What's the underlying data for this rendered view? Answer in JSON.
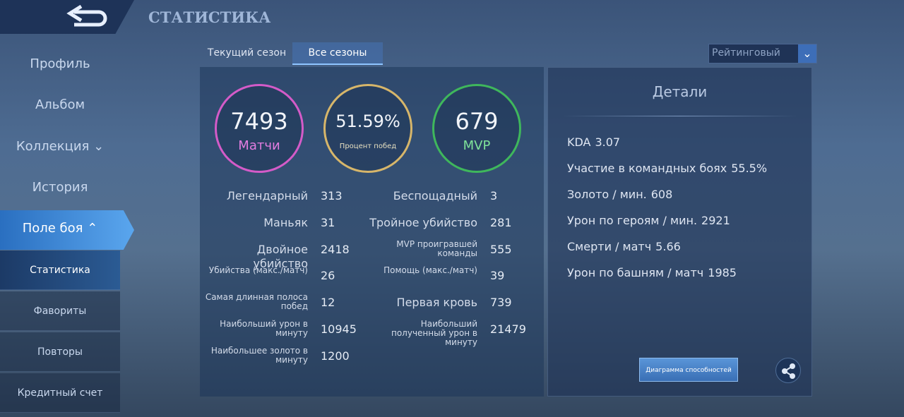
{
  "header": {
    "title": "СТАТИСТИКА"
  },
  "sidebar": {
    "items": [
      "Профиль",
      "Альбом",
      "Коллекция",
      "История",
      "Поле боя"
    ],
    "subitems": [
      "Статистика",
      "Фавориты",
      "Повторы",
      "Кредитный счет"
    ]
  },
  "tabs": [
    "Текущий сезон",
    "Все сезоны"
  ],
  "mode_select": "Рейтинговый",
  "summary": [
    {
      "value": 7493,
      "label": "Матчи"
    },
    {
      "value": "51.59%",
      "label": "Процент побед"
    },
    {
      "value": 679,
      "label": "MVP"
    }
  ],
  "stats_left": [
    {
      "label": "Легендарный",
      "value": 313
    },
    {
      "label": "Маньяк",
      "value": 31
    },
    {
      "label": "Двойное убийство",
      "value": 2418
    },
    {
      "label": "Убийства (макс./матч)",
      "value": 26
    },
    {
      "label": "Самая длинная полоса побед",
      "value": 12
    },
    {
      "label": "Наибольший урон в минуту",
      "value": 10945
    },
    {
      "label": "Наибольшее золото в минуту",
      "value": 1200
    }
  ],
  "stats_right": [
    {
      "label": "Беспощадный",
      "value": 3
    },
    {
      "label": "Тройное убийство",
      "value": 281
    },
    {
      "label": "MVP проигравшей команды",
      "value": 555
    },
    {
      "label": "Помощь (макс./матч)",
      "value": 39
    },
    {
      "label": "Первая кровь",
      "value": 739
    },
    {
      "label": "Наибольший полученный урон в минуту",
      "value": 21479
    }
  ],
  "details": {
    "title": "Детали",
    "items": [
      {
        "label": "KDA",
        "value": 3.07
      },
      {
        "label": "Участие в командных боях",
        "value": "55.5%"
      },
      {
        "label": "Золото / мин.",
        "value": 608
      },
      {
        "label": "Урон по героям / мин.",
        "value": 2921
      },
      {
        "label": "Смерти / матч",
        "value": 5.66
      },
      {
        "label": "Урон по башням / матч",
        "value": 1985
      }
    ],
    "button": "Диаграмма способностей"
  }
}
